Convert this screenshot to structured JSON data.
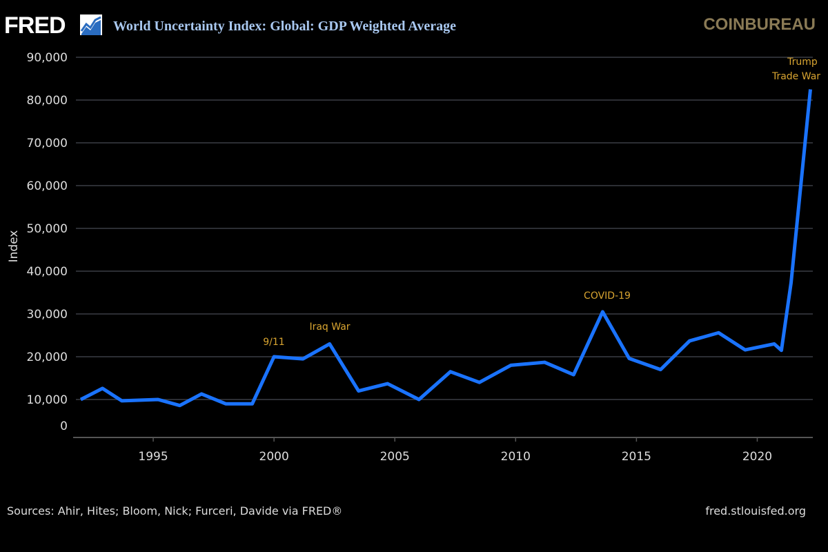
{
  "header": {
    "logo": "FRED",
    "logo_icon": "chart-line-icon",
    "title": "World Uncertainty Index: Global: GDP Weighted Average",
    "watermark": "COINBUREAU"
  },
  "footer": {
    "source": "Sources: Ahir, Hites; Bloom, Nick; Furceri, Davide via FRED®",
    "site": "fred.stlouisfed.org"
  },
  "chart_data": {
    "type": "line",
    "title": "World Uncertainty Index: Global: GDP Weighted Average",
    "xlabel": "",
    "ylabel": "Index",
    "xlim": [
      1991.8,
      2022.3
    ],
    "ylim": [
      0,
      90000
    ],
    "x_ticks": [
      "1995",
      "2000",
      "2005",
      "2010",
      "2015",
      "2020"
    ],
    "y_ticks": [
      "0",
      "10,000",
      "20,000",
      "30,000",
      "40,000",
      "50,000",
      "60,000",
      "70,000",
      "80,000",
      "90,000"
    ],
    "grid": true,
    "line_color": "#1a73ff",
    "x": [
      1992.0,
      1992.9,
      1993.7,
      1995.2,
      1996.1,
      1997.0,
      1998.0,
      1999.1,
      2000.0,
      2001.2,
      2002.3,
      2003.5,
      2004.7,
      2006.0,
      2007.3,
      2008.5,
      2009.8,
      2011.2,
      2012.4,
      2013.6,
      2014.7,
      2016.0,
      2017.2,
      2018.4,
      2019.5,
      2020.7,
      2021.0,
      2021.4,
      2022.2
    ],
    "y": [
      10000,
      12600,
      9700,
      10000,
      8600,
      11300,
      9000,
      9000,
      20000,
      19500,
      23000,
      12000,
      13700,
      10000,
      16500,
      14000,
      18000,
      18700,
      15800,
      30500,
      19600,
      17000,
      23700,
      25600,
      21600,
      23000,
      21500,
      37300,
      82500
    ],
    "annotations": [
      {
        "text": "9/11",
        "x": 2000.0,
        "y": 20000
      },
      {
        "text": "Iraq War",
        "x": 2002.3,
        "y": 23000
      },
      {
        "text": "COVID-19",
        "x": 2013.6,
        "y": 30500
      },
      {
        "text": "Trump",
        "x": 2022.2,
        "y": 82500
      },
      {
        "text": "Trade War",
        "x": 2022.2,
        "y": 82500
      }
    ],
    "annotation_color": "#d9a531"
  }
}
